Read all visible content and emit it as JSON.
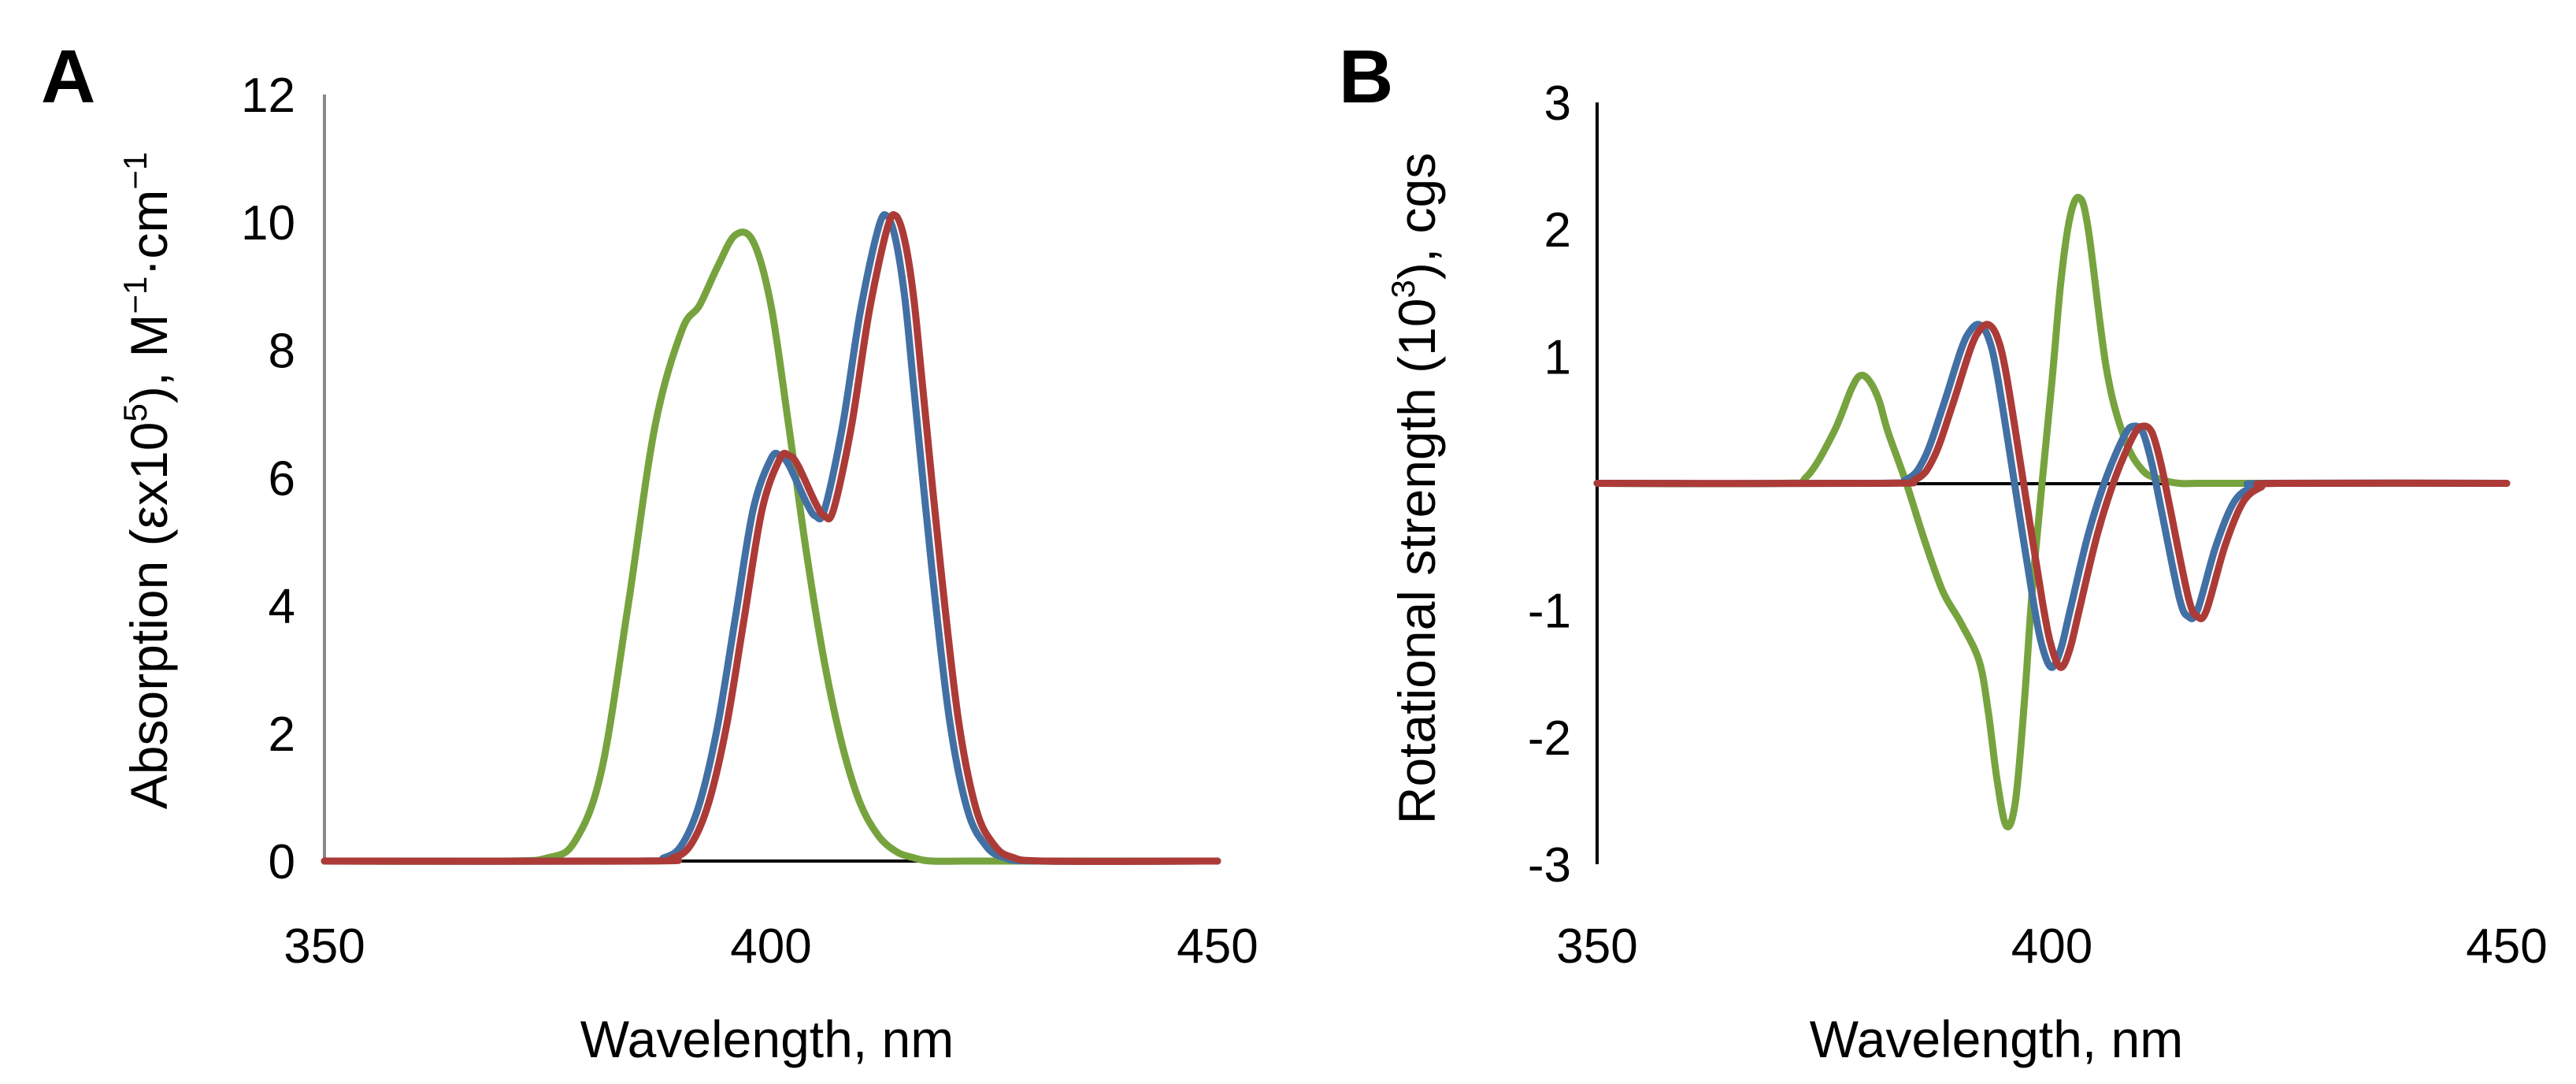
{
  "figure": {
    "panel_a_label": "A",
    "panel_b_label": "B"
  },
  "colors": {
    "green": "#77a33f",
    "blue": "#4270a4",
    "red": "#ac3b37",
    "axis": "#000000",
    "axis_a": "#888888"
  },
  "chart_data": [
    {
      "type": "line",
      "panel": "A",
      "title": "",
      "xlabel": "Wavelength, nm",
      "ylabel_text": "Absorption (εx10",
      "ylabel_sup1": "5",
      "ylabel_mid": "), M",
      "ylabel_sup2": "−1",
      "ylabel_mid2": "·cm",
      "ylabel_sup3": "−1",
      "xlim": [
        350,
        450
      ],
      "ylim": [
        0,
        12
      ],
      "x_ticks": [
        "350",
        "400",
        "450"
      ],
      "y_ticks": [
        "0",
        "2",
        "4",
        "6",
        "8",
        "10",
        "12"
      ],
      "grid": false,
      "legend": "none",
      "series": [
        {
          "name": "green",
          "color": "#77a33f",
          "x": [
            350,
            370,
            375,
            378,
            381,
            384,
            387,
            390,
            392,
            394,
            396,
            398,
            400,
            402,
            404,
            406,
            408,
            410,
            412,
            414,
            416,
            418,
            422,
            430,
            450
          ],
          "values": [
            0,
            0,
            0.05,
            0.3,
            1.4,
            4.0,
            6.8,
            8.3,
            8.7,
            9.3,
            9.8,
            9.7,
            8.7,
            6.8,
            4.8,
            3.1,
            1.8,
            0.9,
            0.4,
            0.15,
            0.05,
            0,
            0,
            0,
            0
          ]
        },
        {
          "name": "blue",
          "color": "#4270a4",
          "x": [
            350,
            385,
            388,
            390,
            392,
            394,
            396,
            398,
            400,
            401,
            402,
            404,
            405,
            406,
            408,
            410,
            412,
            413,
            414,
            415,
            416,
            418,
            420,
            422,
            424,
            426,
            430,
            450
          ],
          "values": [
            0,
            0,
            0.05,
            0.25,
            0.9,
            2.1,
            3.8,
            5.5,
            6.3,
            6.35,
            6.2,
            5.6,
            5.4,
            5.5,
            6.8,
            8.6,
            9.9,
            10.1,
            9.7,
            8.8,
            7.4,
            4.6,
            2.2,
            0.8,
            0.25,
            0.06,
            0,
            0
          ]
        },
        {
          "name": "red",
          "color": "#ac3b37",
          "x": [
            350,
            386,
            389,
            391,
            393,
            395,
            397,
            399,
            401,
            402,
            403,
            405,
            406,
            407,
            409,
            411,
            413,
            414,
            415,
            416,
            417,
            419,
            421,
            423,
            425,
            427,
            431,
            450
          ],
          "values": [
            0,
            0,
            0.05,
            0.25,
            0.9,
            2.1,
            3.8,
            5.5,
            6.3,
            6.35,
            6.2,
            5.6,
            5.4,
            5.5,
            6.8,
            8.6,
            9.9,
            10.1,
            9.7,
            8.8,
            7.4,
            4.6,
            2.2,
            0.8,
            0.25,
            0.06,
            0,
            0
          ]
        }
      ]
    },
    {
      "type": "line",
      "panel": "B",
      "title": "",
      "xlabel": "Wavelength, nm",
      "ylabel_text": "Rotational strength (10",
      "ylabel_sup1": "3",
      "ylabel_mid": "), cgs",
      "xlim": [
        350,
        450
      ],
      "ylim": [
        -3,
        3
      ],
      "x_ticks": [
        "350",
        "400",
        "450"
      ],
      "y_ticks": [
        "-3",
        "-2",
        "-1",
        "1",
        "2",
        "3"
      ],
      "y_tick_values": [
        -3,
        -2,
        -1,
        1,
        2,
        3
      ],
      "grid": false,
      "legend": "none",
      "series": [
        {
          "name": "green",
          "color": "#77a33f",
          "x": [
            350,
            370,
            373,
            376,
            378,
            379,
            380,
            381,
            382,
            384,
            386,
            388,
            390,
            392,
            393,
            394,
            395,
            396,
            397,
            398,
            400,
            401,
            402,
            403,
            404,
            406,
            408,
            410,
            412,
            414,
            416,
            418,
            420,
            450
          ],
          "values": [
            0,
            0,
            0.05,
            0.4,
            0.75,
            0.85,
            0.8,
            0.65,
            0.4,
            0.0,
            -0.45,
            -0.85,
            -1.1,
            -1.4,
            -1.8,
            -2.35,
            -2.7,
            -2.5,
            -1.7,
            -0.7,
            0.8,
            1.6,
            2.1,
            2.25,
            2.0,
            0.9,
            0.35,
            0.1,
            0.03,
            0,
            0,
            0,
            0,
            0
          ]
        },
        {
          "name": "blue",
          "color": "#4270a4",
          "x": [
            350,
            380,
            384,
            386,
            388,
            390,
            391,
            392,
            393,
            394,
            396,
            398,
            399,
            400,
            401,
            402,
            404,
            406,
            408,
            409,
            410,
            411,
            412,
            414,
            415,
            416,
            418,
            420,
            422,
            424,
            450
          ],
          "values": [
            0,
            0,
            0.03,
            0.2,
            0.6,
            1.05,
            1.2,
            1.25,
            1.15,
            0.85,
            -0.05,
            -0.95,
            -1.3,
            -1.45,
            -1.3,
            -1.0,
            -0.4,
            0.05,
            0.38,
            0.45,
            0.4,
            0.15,
            -0.2,
            -0.9,
            -1.05,
            -1.0,
            -0.5,
            -0.15,
            -0.03,
            0,
            0
          ]
        },
        {
          "name": "red",
          "color": "#ac3b37",
          "x": [
            350,
            381,
            385,
            387,
            389,
            391,
            392,
            393,
            394,
            395,
            397,
            399,
            400,
            401,
            402,
            403,
            405,
            407,
            409,
            410,
            411,
            412,
            413,
            415,
            416,
            417,
            419,
            421,
            423,
            425,
            450
          ],
          "values": [
            0,
            0,
            0.03,
            0.2,
            0.6,
            1.05,
            1.2,
            1.25,
            1.15,
            0.85,
            -0.05,
            -0.95,
            -1.3,
            -1.45,
            -1.3,
            -1.0,
            -0.4,
            0.05,
            0.38,
            0.45,
            0.4,
            0.15,
            -0.2,
            -0.9,
            -1.05,
            -1.0,
            -0.5,
            -0.15,
            -0.03,
            0,
            0
          ]
        }
      ]
    }
  ]
}
